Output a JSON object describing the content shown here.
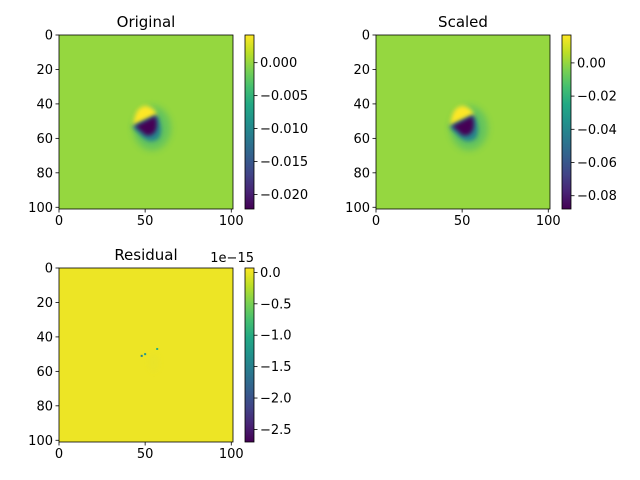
{
  "chart_data": [
    {
      "type": "heatmap",
      "title": "Original",
      "x_ticks": [
        0,
        50,
        100
      ],
      "y_ticks": [
        0,
        20,
        40,
        60,
        80,
        100
      ],
      "xlim": [
        0,
        101
      ],
      "ylim": [
        101,
        0
      ],
      "background_value": 0.0,
      "colorbar": {
        "range": [
          -0.0222,
          0.0042
        ],
        "ticks": [
          0.0,
          -0.005,
          -0.01,
          -0.015,
          -0.02
        ],
        "tick_labels": [
          "0.000",
          "−0.005",
          "−0.010",
          "−0.015",
          "−0.020"
        ],
        "offset_label": ""
      },
      "feature": {
        "center": [
          50,
          52
        ],
        "positive_peak": 0.0042,
        "negative_peak": -0.0222
      }
    },
    {
      "type": "heatmap",
      "title": "Scaled",
      "x_ticks": [
        0,
        50,
        100
      ],
      "y_ticks": [
        0,
        20,
        40,
        60,
        80,
        100
      ],
      "xlim": [
        0,
        101
      ],
      "ylim": [
        101,
        0
      ],
      "background_value": 0.0,
      "colorbar": {
        "range": [
          -0.088,
          0.0168
        ],
        "ticks": [
          0.0,
          -0.02,
          -0.04,
          -0.06,
          -0.08
        ],
        "tick_labels": [
          "0.00",
          "−0.02",
          "−0.04",
          "−0.06",
          "−0.08"
        ],
        "offset_label": ""
      },
      "feature": {
        "center": [
          50,
          52
        ],
        "positive_peak": 0.0168,
        "negative_peak": -0.088
      }
    },
    {
      "type": "heatmap",
      "title": "Residual",
      "x_ticks": [
        0,
        50,
        100
      ],
      "y_ticks": [
        0,
        20,
        40,
        60,
        80,
        100
      ],
      "xlim": [
        0,
        101
      ],
      "ylim": [
        101,
        0
      ],
      "background_value": 0.0,
      "colorbar": {
        "range": [
          -2.7,
          0.07
        ],
        "ticks": [
          0.0,
          -0.5,
          -1.0,
          -1.5,
          -2.0,
          -2.5
        ],
        "tick_labels": [
          "0.0",
          "−0.5",
          "−1.0",
          "−1.5",
          "−2.0",
          "−2.5"
        ],
        "offset_label": "1e−15"
      },
      "points": [
        {
          "x": 48,
          "y": 51,
          "value": -1.5
        },
        {
          "x": 50,
          "y": 50,
          "value": -1.2
        },
        {
          "x": 57,
          "y": 47,
          "value": -1.0
        }
      ]
    }
  ]
}
